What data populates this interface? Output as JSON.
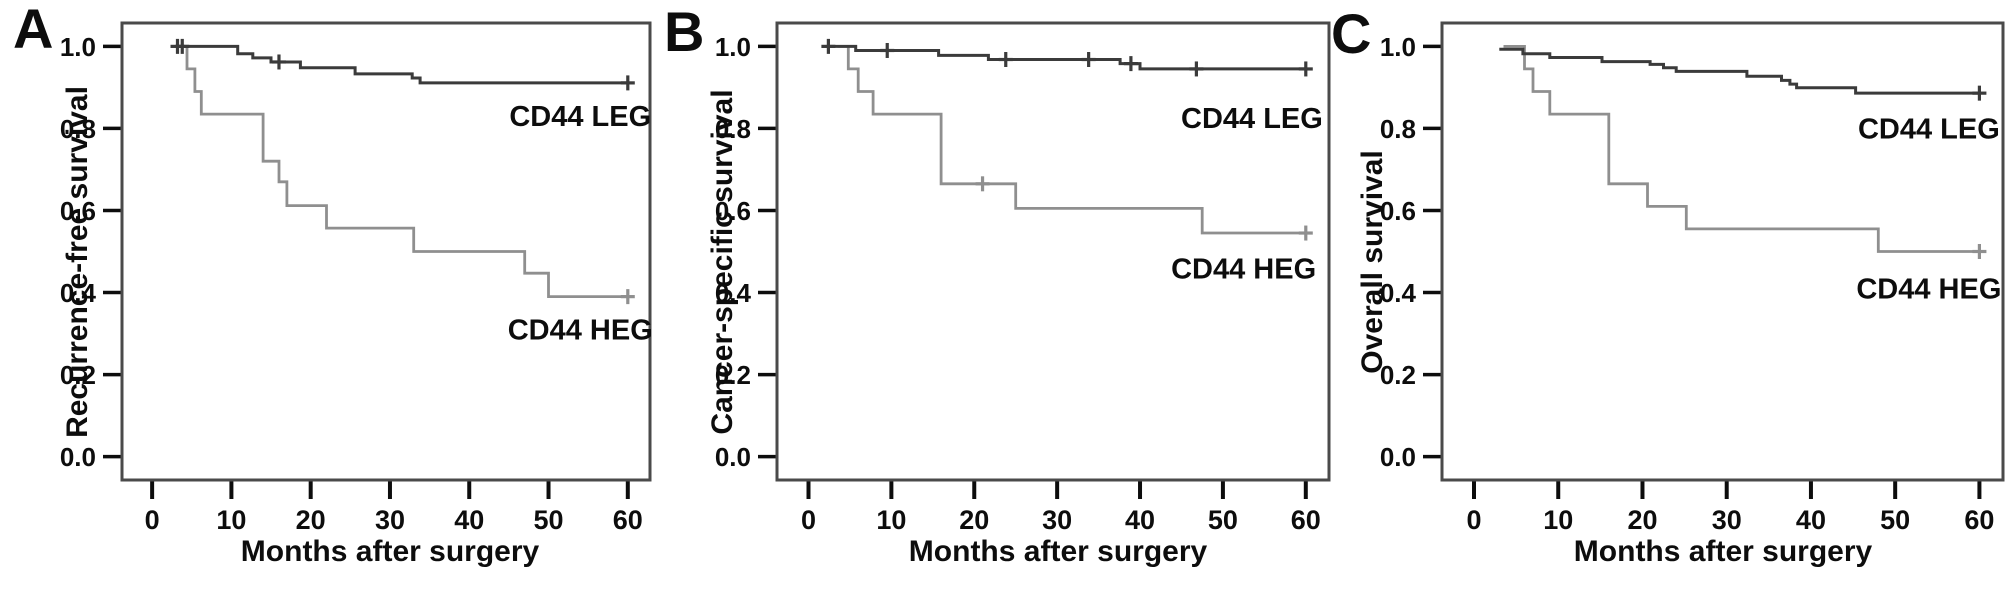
{
  "figure_colors": {
    "leg_line": "#3b3b3b",
    "heg_line": "#8f8f8f",
    "frame": "#4a4a4a",
    "text": "#0d0d0d",
    "background": "#ffffff"
  },
  "chart_data": [
    {
      "type": "line",
      "panel_label": "A",
      "ylabel": "Recurrence-free survival",
      "xlabel": "Months after surgery",
      "x_ticks": [
        0,
        10,
        20,
        30,
        40,
        50,
        60
      ],
      "y_ticks": [
        "1.0",
        "0.8",
        "0.6",
        "0.4",
        "0.2",
        "0.0"
      ],
      "xlim": [
        -3.8,
        62.8
      ],
      "ylim": [
        -0.057,
        1.057
      ],
      "x_end": 60,
      "legend_position": "inline-right",
      "grid": false,
      "series": [
        {
          "name": "CD44 LEG",
          "role": "leg",
          "label": "CD44 LEG",
          "label_pos": [
            54,
            0.83
          ],
          "steps": [
            [
              3,
              1.0
            ],
            [
              10.8,
              0.982
            ],
            [
              12.7,
              0.972
            ],
            [
              15,
              0.962
            ],
            [
              18.7,
              0.948
            ],
            [
              25.6,
              0.933
            ],
            [
              32.8,
              0.923
            ],
            [
              33.8,
              0.911
            ]
          ],
          "censors": [
            [
              3.2,
              1.0
            ],
            [
              3.8,
              1.0
            ],
            [
              16,
              0.962
            ],
            [
              60,
              0.911
            ]
          ]
        },
        {
          "name": "CD44 HEG",
          "role": "heg",
          "label": "CD44 HEG",
          "label_pos": [
            54,
            0.31
          ],
          "steps": [
            [
              3.5,
              1.0
            ],
            [
              4.4,
              0.945
            ],
            [
              5.4,
              0.89
            ],
            [
              6.2,
              0.835
            ],
            [
              14,
              0.72
            ],
            [
              16,
              0.67
            ],
            [
              17,
              0.612
            ],
            [
              22,
              0.557
            ],
            [
              33,
              0.5
            ],
            [
              47,
              0.447
            ],
            [
              50,
              0.39
            ]
          ],
          "censors": [
            [
              60,
              0.39
            ]
          ]
        }
      ]
    },
    {
      "type": "line",
      "panel_label": "B",
      "ylabel": "Cancer-specific survival",
      "xlabel": "Months after surgery",
      "x_ticks": [
        0,
        10,
        20,
        30,
        40,
        50,
        60
      ],
      "y_ticks": [
        "1.0",
        "0.8",
        "0.6",
        "0.4",
        "0.2",
        "0.0"
      ],
      "xlim": [
        -3.8,
        62.8
      ],
      "ylim": [
        -0.057,
        1.057
      ],
      "x_end": 60,
      "legend_position": "inline-right",
      "grid": false,
      "series": [
        {
          "name": "CD44 LEG",
          "role": "leg",
          "label": "CD44 LEG",
          "label_pos": [
            53.5,
            0.826
          ],
          "steps": [
            [
              2.2,
              1.0
            ],
            [
              5.7,
              0.99
            ],
            [
              15.7,
              0.978
            ],
            [
              21.7,
              0.968
            ],
            [
              37.6,
              0.958
            ],
            [
              40,
              0.945
            ]
          ],
          "censors": [
            [
              2.4,
              1.0
            ],
            [
              9.5,
              0.99
            ],
            [
              23.8,
              0.968
            ],
            [
              33.8,
              0.968
            ],
            [
              38.9,
              0.958
            ],
            [
              46.8,
              0.945
            ],
            [
              60,
              0.945
            ]
          ]
        },
        {
          "name": "CD44 HEG",
          "role": "heg",
          "label": "CD44 HEG",
          "label_pos": [
            52.5,
            0.458
          ],
          "steps": [
            [
              3.5,
              1.0
            ],
            [
              4.8,
              0.945
            ],
            [
              6,
              0.89
            ],
            [
              7.8,
              0.835
            ],
            [
              16,
              0.665
            ],
            [
              25,
              0.605
            ],
            [
              47.5,
              0.545
            ]
          ],
          "censors": [
            [
              21,
              0.665
            ],
            [
              60,
              0.545
            ]
          ]
        }
      ]
    },
    {
      "type": "line",
      "panel_label": "C",
      "ylabel": "Overall survival",
      "xlabel": "Months after surgery",
      "x_ticks": [
        0,
        10,
        20,
        30,
        40,
        50,
        60
      ],
      "y_ticks": [
        "1.0",
        "0.8",
        "0.6",
        "0.4",
        "0.2",
        "0.0"
      ],
      "xlim": [
        -3.8,
        62.8
      ],
      "ylim": [
        -0.057,
        1.057
      ],
      "x_end": 60,
      "legend_position": "inline-right",
      "grid": false,
      "series": [
        {
          "name": "CD44 LEG",
          "role": "leg",
          "label": "CD44 LEG",
          "label_pos": [
            54,
            0.8
          ],
          "steps": [
            [
              3,
              0.993
            ],
            [
              5.8,
              0.982
            ],
            [
              9,
              0.973
            ],
            [
              15.2,
              0.963
            ],
            [
              20.9,
              0.956
            ],
            [
              22.5,
              0.948
            ],
            [
              24,
              0.939
            ],
            [
              32.4,
              0.927
            ],
            [
              36.5,
              0.917
            ],
            [
              37.5,
              0.908
            ],
            [
              38.3,
              0.899
            ],
            [
              45.3,
              0.886
            ]
          ],
          "censors": [
            [
              60,
              0.886
            ]
          ]
        },
        {
          "name": "CD44 HEG",
          "role": "heg",
          "label": "CD44 HEG",
          "label_pos": [
            54,
            0.41
          ],
          "steps": [
            [
              3.5,
              1.0
            ],
            [
              6,
              0.945
            ],
            [
              7,
              0.89
            ],
            [
              9,
              0.835
            ],
            [
              16,
              0.665
            ],
            [
              20.6,
              0.61
            ],
            [
              25.2,
              0.555
            ],
            [
              48,
              0.5
            ]
          ],
          "censors": [
            [
              60,
              0.5
            ]
          ]
        }
      ]
    }
  ]
}
